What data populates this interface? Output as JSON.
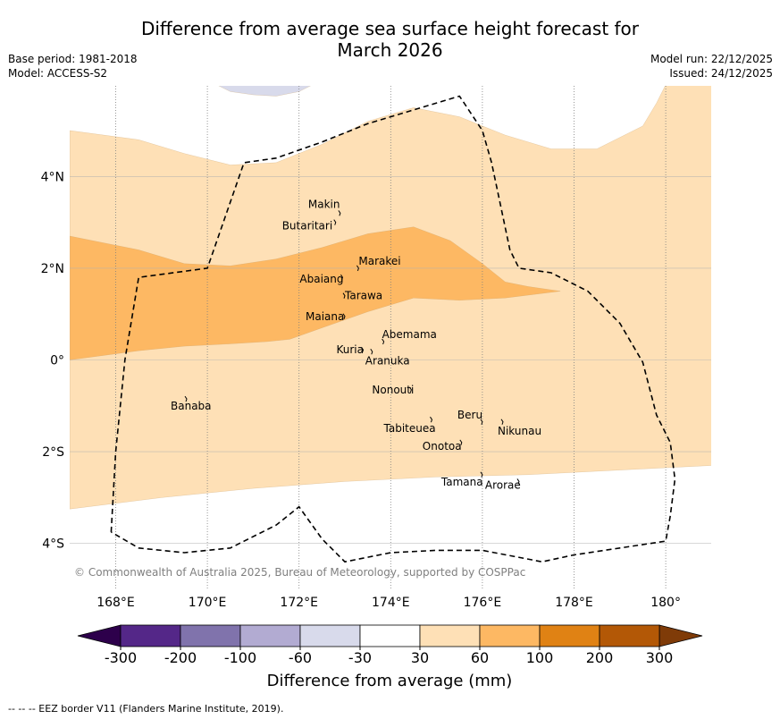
{
  "title_line1": "Difference from average sea surface height forecast for",
  "title_line2": "March 2026",
  "base_period": "Base period: 1981-2018",
  "model": "Model: ACCESS-S2",
  "model_run": "Model run: 22/12/2025",
  "issued": "Issued: 24/12/2025",
  "copyright": "© Commonwealth of Australia 2025, Bureau of Meteorology, supported by COSPPac",
  "footnote": "--  --  -- EEZ border V11 (Flanders Marine Institute, 2019).",
  "colors": {
    "neg300": "#2d004b",
    "neg200": "#542788",
    "neg100": "#8073ac",
    "neg60": "#b2abd2",
    "neg30": "#d8daeb",
    "neutral": "#ffffff",
    "pos30": "#fee0b6",
    "pos60": "#fdb863",
    "pos100": "#e08214",
    "pos200": "#b35806",
    "pos300": "#7f3b08",
    "border": "#000000",
    "grid": "#7f7f7f"
  },
  "chart_data": {
    "type": "map",
    "lon_range": [
      167,
      181
    ],
    "lat_range": [
      -5,
      6
    ],
    "lon_ticks": [
      {
        "value": 168,
        "label": "168°E"
      },
      {
        "value": 170,
        "label": "170°E"
      },
      {
        "value": 172,
        "label": "172°E"
      },
      {
        "value": 174,
        "label": "174°E"
      },
      {
        "value": 176,
        "label": "176°E"
      },
      {
        "value": 178,
        "label": "178°E"
      },
      {
        "value": 180,
        "label": "180°"
      }
    ],
    "lat_ticks": [
      {
        "value": 4,
        "label": "4°N"
      },
      {
        "value": 2,
        "label": "2°N"
      },
      {
        "value": 0,
        "label": "0°"
      },
      {
        "value": -2,
        "label": "2°S"
      },
      {
        "value": -4,
        "label": "4°S"
      }
    ],
    "islands": [
      {
        "name": "Makin",
        "lon": 172.9,
        "lat": 3.2
      },
      {
        "name": "Butaritari",
        "lon": 172.8,
        "lat": 3.0
      },
      {
        "name": "Marakei",
        "lon": 173.3,
        "lat": 2.0
      },
      {
        "name": "Abaiang",
        "lon": 172.95,
        "lat": 1.8
      },
      {
        "name": "Tarawa",
        "lon": 173.0,
        "lat": 1.4
      },
      {
        "name": "Maiana",
        "lon": 173.0,
        "lat": 0.95
      },
      {
        "name": "Abemama",
        "lon": 173.85,
        "lat": 0.4
      },
      {
        "name": "Kuria",
        "lon": 173.4,
        "lat": 0.22
      },
      {
        "name": "Aranuka",
        "lon": 173.6,
        "lat": 0.18
      },
      {
        "name": "Nonouti",
        "lon": 174.45,
        "lat": -0.65
      },
      {
        "name": "Banaba",
        "lon": 169.55,
        "lat": -0.85
      },
      {
        "name": "Beru",
        "lon": 176.0,
        "lat": -1.35
      },
      {
        "name": "Nikunau",
        "lon": 176.45,
        "lat": -1.35
      },
      {
        "name": "Tabiteuea",
        "lon": 174.9,
        "lat": -1.3
      },
      {
        "name": "Onotoa",
        "lon": 175.55,
        "lat": -1.8
      },
      {
        "name": "Tamana",
        "lon": 176.0,
        "lat": -2.5
      },
      {
        "name": "Arorae",
        "lon": 176.8,
        "lat": -2.65
      }
    ],
    "colorbar": {
      "title": "Difference from average (mm)",
      "levels": [
        "-300",
        "-200",
        "-100",
        "-60",
        "-30",
        "30",
        "60",
        "100",
        "200",
        "300"
      ],
      "bin_colors": [
        "#542788",
        "#8073ac",
        "#b2abd2",
        "#d8daeb",
        "#ffffff",
        "#fee0b6",
        "#fdb863",
        "#e08214",
        "#b35806"
      ],
      "extend_low_color": "#2d004b",
      "extend_high_color": "#7f3b08"
    },
    "contours": [
      {
        "level": "30 to 60 mm",
        "polygon": [
          [
            167,
            5.0
          ],
          [
            168.5,
            4.8
          ],
          [
            169.5,
            4.5
          ],
          [
            170.5,
            4.25
          ],
          [
            171.5,
            4.3
          ],
          [
            172.5,
            4.7
          ],
          [
            173.5,
            5.2
          ],
          [
            174.5,
            5.5
          ],
          [
            175.5,
            5.3
          ],
          [
            176.5,
            4.9
          ],
          [
            177.5,
            4.6
          ],
          [
            178.5,
            4.6
          ],
          [
            179.5,
            5.1
          ],
          [
            179.8,
            5.6
          ],
          [
            180.0,
            6.0
          ],
          [
            181,
            6.0
          ],
          [
            181,
            -2.3
          ],
          [
            179,
            -2.4
          ],
          [
            177,
            -2.5
          ],
          [
            175,
            -2.55
          ],
          [
            173,
            -2.65
          ],
          [
            171,
            -2.8
          ],
          [
            169,
            -3.0
          ],
          [
            167,
            -3.25
          ]
        ]
      },
      {
        "level": "60 to 100 mm",
        "polygon": [
          [
            167,
            2.7
          ],
          [
            168.5,
            2.4
          ],
          [
            169.5,
            2.1
          ],
          [
            170.5,
            2.05
          ],
          [
            171.5,
            2.2
          ],
          [
            172.5,
            2.45
          ],
          [
            173.5,
            2.75
          ],
          [
            174.5,
            2.9
          ],
          [
            175.3,
            2.6
          ],
          [
            176.0,
            2.1
          ],
          [
            176.5,
            1.7
          ],
          [
            177.0,
            1.6
          ],
          [
            177.7,
            1.5
          ],
          [
            176.5,
            1.35
          ],
          [
            175.5,
            1.3
          ],
          [
            174.5,
            1.35
          ],
          [
            173.5,
            1.05
          ],
          [
            172.5,
            0.7
          ],
          [
            171.8,
            0.45
          ],
          [
            171.3,
            0.4
          ],
          [
            170.5,
            0.35
          ],
          [
            169.5,
            0.3
          ],
          [
            168.5,
            0.2
          ],
          [
            167,
            0.0
          ]
        ]
      },
      {
        "level": "-30 to -60 mm",
        "polygon": [
          [
            170.1,
            6.05
          ],
          [
            170.5,
            5.85
          ],
          [
            171.0,
            5.78
          ],
          [
            171.5,
            5.75
          ],
          [
            172.0,
            5.85
          ],
          [
            172.4,
            6.05
          ]
        ]
      }
    ],
    "eez_border": [
      [
        167.9,
        -3.75
      ],
      [
        168.0,
        -2.0
      ],
      [
        168.2,
        0.0
      ],
      [
        168.5,
        1.8
      ],
      [
        170.0,
        2.0
      ],
      [
        170.8,
        4.3
      ],
      [
        171.5,
        4.4
      ],
      [
        172.5,
        4.75
      ],
      [
        173.5,
        5.15
      ],
      [
        174.5,
        5.45
      ],
      [
        175.5,
        5.75
      ],
      [
        176.0,
        5.0
      ],
      [
        176.2,
        4.3
      ],
      [
        176.6,
        2.4
      ],
      [
        176.8,
        2.0
      ],
      [
        177.5,
        1.9
      ],
      [
        178.3,
        1.5
      ],
      [
        179.0,
        0.8
      ],
      [
        179.5,
        -0.05
      ],
      [
        179.8,
        -1.2
      ],
      [
        180.1,
        -1.8
      ],
      [
        180.2,
        -2.6
      ],
      [
        180.1,
        -3.4
      ],
      [
        180.0,
        -3.95
      ],
      [
        179.0,
        -4.1
      ],
      [
        178.0,
        -4.25
      ],
      [
        177.3,
        -4.4
      ],
      [
        176.0,
        -4.15
      ],
      [
        175.0,
        -4.15
      ],
      [
        174.0,
        -4.2
      ],
      [
        173.0,
        -4.4
      ],
      [
        172.5,
        -3.9
      ],
      [
        172.0,
        -3.2
      ],
      [
        171.5,
        -3.6
      ],
      [
        170.5,
        -4.1
      ],
      [
        169.5,
        -4.2
      ],
      [
        168.5,
        -4.1
      ],
      [
        167.9,
        -3.75
      ]
    ]
  }
}
